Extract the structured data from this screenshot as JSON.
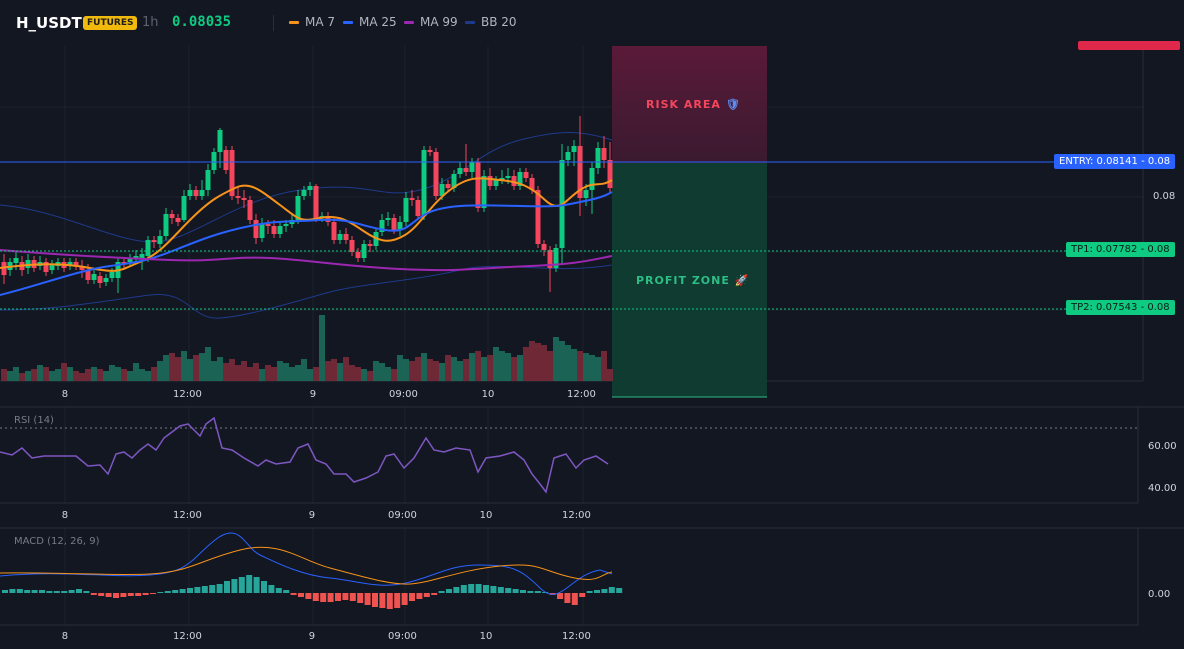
{
  "header": {
    "symbol": "H_USDT",
    "badge": "FUTURES",
    "timeframe": "1h",
    "last_price": "0.08035",
    "indicators": [
      {
        "label": "MA 7",
        "color": "#f7931a"
      },
      {
        "label": "MA 25",
        "color": "#2962ff"
      },
      {
        "label": "MA 99",
        "color": "#9c27b0"
      },
      {
        "label": "BB 20",
        "color": "#1e3a8a"
      }
    ]
  },
  "zones": {
    "risk_label": "RISK AREA",
    "profit_label": "PROFIT ZONE"
  },
  "levels": {
    "entry": "ENTRY: 0.08141",
    "entry_axis": "0.08",
    "tp1": "TP1: 0.07782",
    "tp1_axis": "0.08",
    "tp2": "TP2: 0.07543",
    "tp2_axis": "0.08",
    "price_axis_tick": "0.08"
  },
  "time_axis": [
    "8",
    "12:00",
    "9",
    "09:00",
    "10",
    "12:00"
  ],
  "rsi": {
    "label": "RSI (14)",
    "ticks": [
      "60.00",
      "40.00"
    ]
  },
  "macd": {
    "label": "MACD (12, 26, 9)",
    "ticks": [
      "0.00"
    ]
  },
  "colors": {
    "up": "#0ecb81",
    "down": "#f6465d",
    "risk_zone": "#4a1a32",
    "profit_zone": "#0f3b30",
    "entry_line": "#2962ff",
    "rsi_line": "#7e57c2"
  },
  "icons": {
    "risk": "shield-icon",
    "profit": "rocket-icon"
  }
}
